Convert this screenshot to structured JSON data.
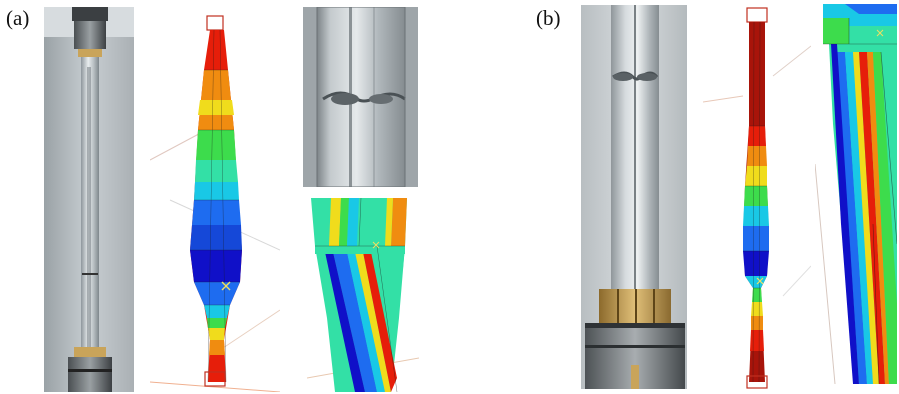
{
  "figure": {
    "panel_a": {
      "label": "(a)"
    },
    "panel_b": {
      "label": "(b)"
    }
  },
  "colors": {
    "contour": [
      "#1010c8",
      "#1e6cf0",
      "#19c8e6",
      "#33e0a6",
      "#3ddc4c",
      "#b4e61c",
      "#f0dc1c",
      "#f08c10",
      "#e61e0a",
      "#a8140a"
    ],
    "background_grid": "#c9c9c9",
    "photo_metal": "#b8bfc4",
    "brass": "#c9a45a"
  }
}
